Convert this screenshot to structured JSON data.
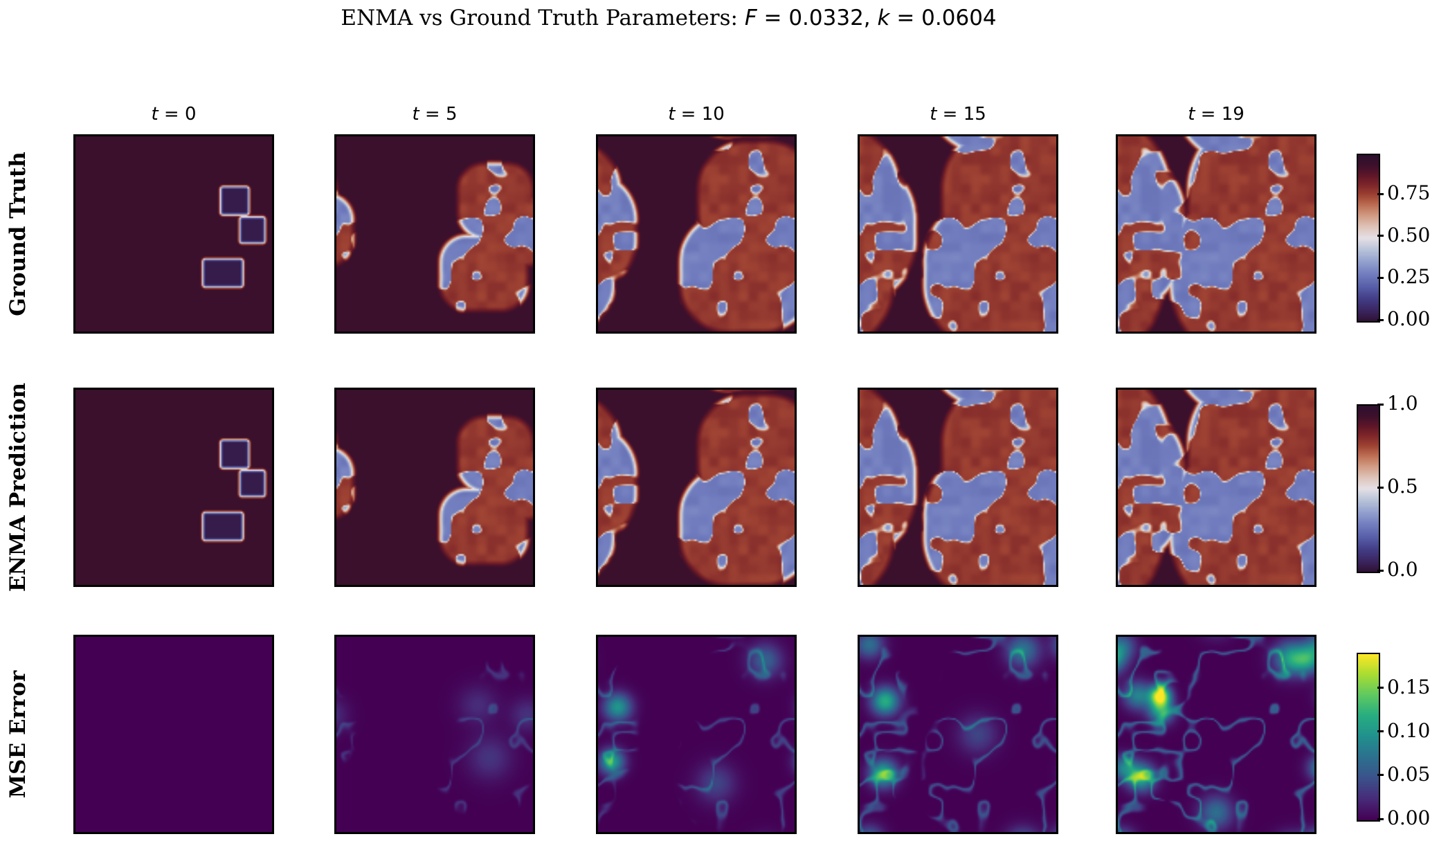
{
  "title": {
    "full": "ENMA vs Ground Truth Parameters: F = 0.0332, k = 0.0604",
    "prefix": "ENMA vs Ground Truth Parameters: ",
    "f_symbol": "F",
    "f_eq": " = 0.0332, ",
    "k_symbol": "k",
    "k_eq": " = 0.0604"
  },
  "rows": [
    {
      "label": "Ground Truth"
    },
    {
      "label": "ENMA Prediction"
    },
    {
      "label": "MSE Error"
    }
  ],
  "columns": [
    {
      "symbol": "t",
      "eq": " = 0"
    },
    {
      "symbol": "t",
      "eq": " = 5"
    },
    {
      "symbol": "t",
      "eq": " = 10"
    },
    {
      "symbol": "t",
      "eq": " = 15"
    },
    {
      "symbol": "t",
      "eq": " = 19"
    }
  ],
  "colorbars": [
    {
      "name": "ground-truth-colorbar",
      "colormap": "twilight_shifted",
      "vmax": 0.99,
      "ticks": [
        {
          "label": "0.75",
          "value": 0.75
        },
        {
          "label": "0.50",
          "value": 0.5
        },
        {
          "label": "0.25",
          "value": 0.25
        },
        {
          "label": "0.00",
          "value": 0.0
        }
      ]
    },
    {
      "name": "prediction-colorbar",
      "colormap": "twilight_shifted",
      "vmax": 1.0,
      "ticks": [
        {
          "label": "1.0",
          "value": 1.0
        },
        {
          "label": "0.5",
          "value": 0.5
        },
        {
          "label": "0.0",
          "value": 0.0
        }
      ]
    },
    {
      "name": "mse-colorbar",
      "colormap": "viridis",
      "vmax": 0.19,
      "ticks": [
        {
          "label": "0.15",
          "value": 0.15
        },
        {
          "label": "0.10",
          "value": 0.1
        },
        {
          "label": "0.05",
          "value": 0.05
        },
        {
          "label": "0.00",
          "value": 0.0
        }
      ]
    }
  ],
  "chart_data": {
    "type": "heatmap",
    "title": "ENMA vs Ground Truth Parameters: F = 0.0332, k = 0.0604",
    "parameters": {
      "F": 0.0332,
      "k": 0.0604
    },
    "timesteps": [
      0,
      5,
      10,
      15,
      19
    ],
    "row_series": [
      "Ground Truth",
      "ENMA Prediction",
      "MSE Error"
    ],
    "field_colormap": "twilight_shifted",
    "error_colormap": "viridis",
    "field_value_range": [
      0.0,
      1.0
    ],
    "ground_truth_colorbar_ticks": [
      0.0,
      0.25,
      0.5,
      0.75
    ],
    "prediction_colorbar_ticks": [
      0.0,
      0.5,
      1.0
    ],
    "error_value_range": [
      0.0,
      0.19
    ],
    "error_colorbar_ticks": [
      0.0,
      0.05,
      0.1,
      0.15
    ],
    "pattern_description": "Gray-Scott reaction-diffusion labyrinth pattern growing from three rectangular seeds on the right side; periodic boundaries wrap growth onto the left edge; dark virgin band remains near x~0.3 at t=19. MSE error is near zero with faint teal blobs along pattern fronts, strongest at t=19 near upper-left.",
    "initial_seeds": [
      {
        "x": 0.81,
        "y": 0.33,
        "w": 0.115,
        "h": 0.115
      },
      {
        "x": 0.9,
        "y": 0.48,
        "w": 0.1,
        "h": 0.105
      },
      {
        "x": 0.75,
        "y": 0.7,
        "w": 0.175,
        "h": 0.115
      }
    ],
    "growth_radius_per_timestep": [
      0.016,
      0.16,
      0.27,
      0.36,
      0.42
    ],
    "error_edge_amplitude_per_timestep": [
      0.0,
      0.03,
      0.04,
      0.05,
      0.06
    ],
    "error_hotspots_per_timestep": [
      [],
      [
        [
          0.78,
          0.62,
          0.08,
          0.03
        ],
        [
          0.72,
          0.35,
          0.07,
          0.025
        ],
        [
          0.97,
          0.4,
          0.06,
          0.028
        ]
      ],
      [
        [
          0.1,
          0.36,
          0.05,
          0.1
        ],
        [
          0.07,
          0.64,
          0.045,
          0.11
        ],
        [
          0.85,
          0.12,
          0.06,
          0.06
        ],
        [
          0.6,
          0.75,
          0.07,
          0.04
        ]
      ],
      [
        [
          0.13,
          0.33,
          0.05,
          0.12
        ],
        [
          0.12,
          0.7,
          0.05,
          0.115
        ],
        [
          0.05,
          0.04,
          0.05,
          0.07
        ],
        [
          0.83,
          0.07,
          0.06,
          0.075
        ],
        [
          0.6,
          0.5,
          0.07,
          0.04
        ]
      ],
      [
        [
          0.215,
          0.3,
          0.037,
          0.18
        ],
        [
          0.22,
          0.38,
          0.045,
          0.11
        ],
        [
          0.88,
          0.11,
          0.06,
          0.105
        ],
        [
          0.97,
          0.12,
          0.05,
          0.08
        ],
        [
          0.12,
          0.72,
          0.05,
          0.115
        ],
        [
          0.1,
          0.3,
          0.05,
          0.085
        ],
        [
          0.03,
          0.67,
          0.045,
          0.08
        ],
        [
          0.5,
          0.9,
          0.06,
          0.07
        ],
        [
          0.02,
          0.05,
          0.05,
          0.065
        ]
      ]
    ]
  }
}
